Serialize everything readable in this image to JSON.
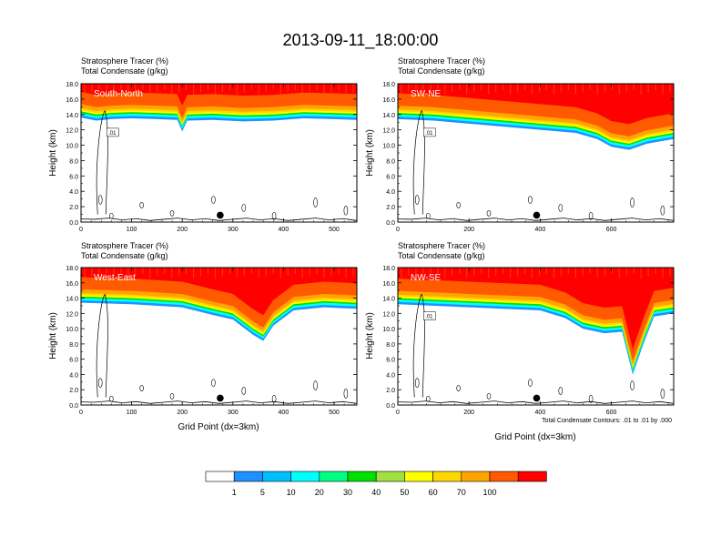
{
  "figure_title": "2013-09-11_18:00:00",
  "footnote": "Total Condensate Contours: .01 to .01 by .000",
  "colors": {
    "levels": [
      "#ffffff",
      "#1e90ff",
      "#00bfff",
      "#00ffff",
      "#00ff80",
      "#00e000",
      "#a0e040",
      "#ffff00",
      "#ffd700",
      "#ffa500",
      "#ff5a00",
      "#ff0000"
    ]
  },
  "chart_data": [
    {
      "type": "contour-cross-section",
      "subtitle_line1": "Stratosphere Tracer   (%)",
      "subtitle_line2": "Total Condensate   (g/kg)",
      "label": "South-North",
      "ylabel": "Height (km)",
      "xlabel": "",
      "xlim": [
        0,
        545
      ],
      "ylim": [
        0,
        18
      ],
      "xticks": [
        "0",
        "100",
        "200",
        "300",
        "400",
        "500"
      ],
      "xtick_values": [
        0,
        100,
        200,
        300,
        400,
        500
      ],
      "yticks": [
        "0.0",
        "2.0",
        "4.0",
        "6.0",
        "8.0",
        "10.0",
        "12.0",
        "14.0",
        "16.0",
        "18.0"
      ],
      "marker_x": 275,
      "contour_label": ".01",
      "tracer_base_km": [
        [
          0,
          13.6
        ],
        [
          30,
          13.2
        ],
        [
          60,
          13.4
        ],
        [
          100,
          13.5
        ],
        [
          150,
          13.4
        ],
        [
          190,
          13.3
        ],
        [
          200,
          11.8
        ],
        [
          210,
          13.2
        ],
        [
          260,
          13.3
        ],
        [
          320,
          13.1
        ],
        [
          380,
          13.2
        ],
        [
          440,
          13.5
        ],
        [
          500,
          13.4
        ],
        [
          545,
          13.3
        ]
      ]
    },
    {
      "type": "contour-cross-section",
      "subtitle_line1": "Stratosphere Tracer   (%)",
      "subtitle_line2": "Total Condensate   (g/kg)",
      "label": "SW-NE",
      "ylabel": "Height (km)",
      "xlabel": "",
      "xlim": [
        0,
        775
      ],
      "ylim": [
        0,
        18
      ],
      "xticks": [
        "0",
        "200",
        "400",
        "600"
      ],
      "xtick_values": [
        0,
        200,
        400,
        600
      ],
      "yticks": [
        "0.0",
        "2.0",
        "4.0",
        "6.0",
        "8.0",
        "10.0",
        "12.0",
        "14.0",
        "16.0",
        "18.0"
      ],
      "marker_x": 390,
      "contour_label": ".01",
      "tracer_base_km": [
        [
          0,
          13.4
        ],
        [
          100,
          13.2
        ],
        [
          200,
          12.8
        ],
        [
          300,
          12.4
        ],
        [
          400,
          12.0
        ],
        [
          500,
          11.6
        ],
        [
          560,
          10.8
        ],
        [
          600,
          9.8
        ],
        [
          650,
          9.4
        ],
        [
          700,
          10.2
        ],
        [
          775,
          10.8
        ]
      ]
    },
    {
      "type": "contour-cross-section",
      "subtitle_line1": "Stratosphere Tracer   (%)",
      "subtitle_line2": "Total Condensate   (g/kg)",
      "label": "West-East",
      "ylabel": "Height (km)",
      "xlabel": "Grid Point (dx=3km)",
      "xlim": [
        0,
        545
      ],
      "ylim": [
        0,
        18
      ],
      "xticks": [
        "0",
        "100",
        "200",
        "300",
        "400",
        "500"
      ],
      "xtick_values": [
        0,
        100,
        200,
        300,
        400,
        500
      ],
      "yticks": [
        "0.0",
        "2.0",
        "4.0",
        "6.0",
        "8.0",
        "10.0",
        "12.0",
        "14.0",
        "16.0",
        "18.0"
      ],
      "marker_x": 275,
      "contour_label": "",
      "tracer_base_km": [
        [
          0,
          13.4
        ],
        [
          100,
          13.2
        ],
        [
          200,
          12.8
        ],
        [
          260,
          11.8
        ],
        [
          300,
          11.2
        ],
        [
          340,
          9.2
        ],
        [
          360,
          8.4
        ],
        [
          380,
          10.4
        ],
        [
          420,
          12.4
        ],
        [
          480,
          12.8
        ],
        [
          545,
          12.6
        ]
      ]
    },
    {
      "type": "contour-cross-section",
      "subtitle_line1": "Stratosphere Tracer   (%)",
      "subtitle_line2": "Total Condensate   (g/kg)",
      "label": "NW-SE",
      "ylabel": "Height (km)",
      "xlabel": "Grid Point (dx=3km)",
      "xlim": [
        0,
        775
      ],
      "ylim": [
        0,
        18
      ],
      "xticks": [
        "0",
        "200",
        "400",
        "600"
      ],
      "xtick_values": [
        0,
        200,
        400,
        600
      ],
      "yticks": [
        "0.0",
        "2.0",
        "4.0",
        "6.0",
        "8.0",
        "10.0",
        "12.0",
        "14.0",
        "16.0",
        "18.0"
      ],
      "marker_x": 390,
      "contour_label": ".01",
      "tracer_base_km": [
        [
          0,
          13.2
        ],
        [
          200,
          12.8
        ],
        [
          400,
          12.4
        ],
        [
          470,
          11.4
        ],
        [
          520,
          10.0
        ],
        [
          580,
          9.4
        ],
        [
          630,
          9.6
        ],
        [
          660,
          4.0
        ],
        [
          690,
          8.0
        ],
        [
          720,
          11.6
        ],
        [
          775,
          12.0
        ]
      ]
    }
  ],
  "colorbar": {
    "labels": [
      "1",
      "5",
      "10",
      "20",
      "30",
      "40",
      "50",
      "60",
      "70",
      "100"
    ]
  }
}
